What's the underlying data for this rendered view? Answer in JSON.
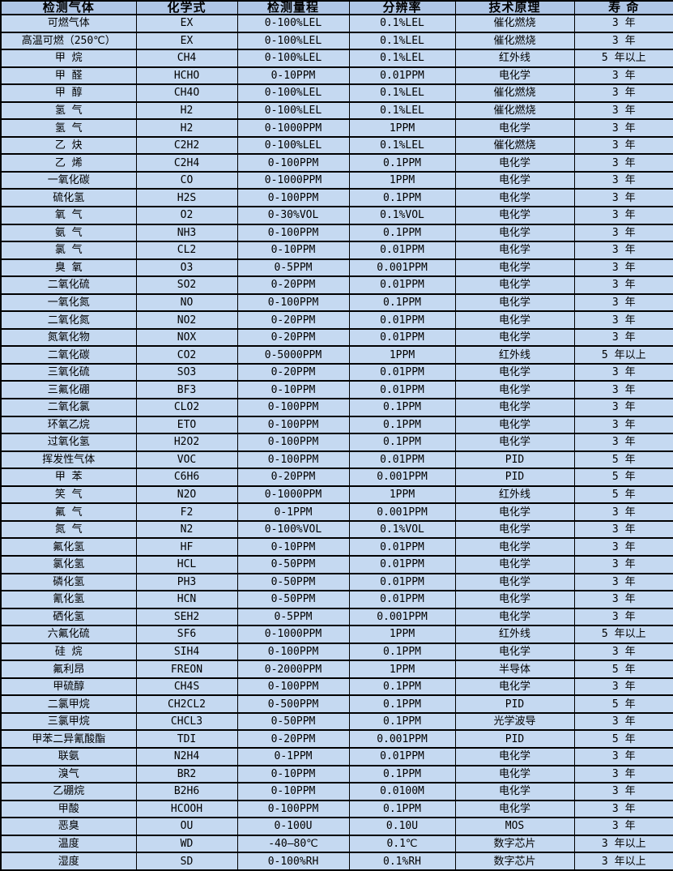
{
  "colors": {
    "header_bg": "#afc6e6",
    "row_bg": "#c5d9f1",
    "border": "#000000",
    "text": "#000000"
  },
  "table": {
    "headers": [
      "检测气体",
      "化学式",
      "检测量程",
      "分辨率",
      "技术原理",
      "寿 命"
    ],
    "rows": [
      [
        "可燃气体",
        "EX",
        "0-100%LEL",
        "0.1%LEL",
        "催化燃烧",
        "3 年"
      ],
      [
        "高温可燃（250℃）",
        "EX",
        "0-100%LEL",
        "0.1%LEL",
        "催化燃烧",
        "3 年"
      ],
      [
        "甲 烷",
        "CH4",
        "0-100%LEL",
        "0.1%LEL",
        "红外线",
        "5 年以上"
      ],
      [
        "甲 醛",
        "HCHO",
        "0-10PPM",
        "0.01PPM",
        "电化学",
        "3 年"
      ],
      [
        "甲 醇",
        "CH4O",
        "0-100%LEL",
        "0.1%LEL",
        "催化燃烧",
        "3 年"
      ],
      [
        "氢 气",
        "H2",
        "0-100%LEL",
        "0.1%LEL",
        "催化燃烧",
        "3 年"
      ],
      [
        "氢 气",
        "H2",
        "0-1000PPM",
        "1PPM",
        "电化学",
        "3 年"
      ],
      [
        "乙 炔",
        "C2H2",
        "0-100%LEL",
        "0.1%LEL",
        "催化燃烧",
        "3 年"
      ],
      [
        "乙 烯",
        "C2H4",
        "0-100PPM",
        "0.1PPM",
        "电化学",
        "3 年"
      ],
      [
        "一氧化碳",
        "CO",
        "0-1000PPM",
        "1PPM",
        "电化学",
        "3 年"
      ],
      [
        "硫化氢",
        "H2S",
        "0-100PPM",
        "0.1PPM",
        "电化学",
        "3 年"
      ],
      [
        "氧 气",
        "O2",
        "0-30%VOL",
        "0.1%VOL",
        "电化学",
        "3 年"
      ],
      [
        "氨 气",
        "NH3",
        "0-100PPM",
        "0.1PPM",
        "电化学",
        "3 年"
      ],
      [
        "氯 气",
        "CL2",
        "0-10PPM",
        "0.01PPM",
        "电化学",
        "3 年"
      ],
      [
        "臭 氧",
        "O3",
        "0-5PPM",
        "0.001PPM",
        "电化学",
        "3 年"
      ],
      [
        "二氧化硫",
        "SO2",
        "0-20PPM",
        "0.01PPM",
        "电化学",
        "3 年"
      ],
      [
        "一氧化氮",
        "NO",
        "0-100PPM",
        "0.1PPM",
        "电化学",
        "3 年"
      ],
      [
        "二氧化氮",
        "NO2",
        "0-20PPM",
        "0.01PPM",
        "电化学",
        "3 年"
      ],
      [
        "氮氧化物",
        "NOX",
        "0-20PPM",
        "0.01PPM",
        "电化学",
        "3 年"
      ],
      [
        "二氧化碳",
        "CO2",
        "0-5000PPM",
        "1PPM",
        "红外线",
        "5 年以上"
      ],
      [
        "三氧化硫",
        "SO3",
        "0-20PPM",
        "0.01PPM",
        "电化学",
        "3 年"
      ],
      [
        "三氟化硼",
        "BF3",
        "0-10PPM",
        "0.01PPM",
        "电化学",
        "3 年"
      ],
      [
        "二氧化氯",
        "CLO2",
        "0-100PPM",
        "0.1PPM",
        "电化学",
        "3 年"
      ],
      [
        "环氧乙烷",
        "ETO",
        "0-100PPM",
        "0.1PPM",
        "电化学",
        "3 年"
      ],
      [
        "过氧化氢",
        "H2O2",
        "0-100PPM",
        "0.1PPM",
        "电化学",
        "3 年"
      ],
      [
        "挥发性气体",
        "VOC",
        "0-100PPM",
        "0.01PPM",
        "PID",
        "5 年"
      ],
      [
        "甲 苯",
        "C6H6",
        "0-20PPM",
        "0.001PPM",
        "PID",
        "5 年"
      ],
      [
        "笑 气",
        "N2O",
        "0-1000PPM",
        "1PPM",
        "红外线",
        "5 年"
      ],
      [
        "氟 气",
        "F2",
        "0-1PPM",
        "0.001PPM",
        "电化学",
        "3 年"
      ],
      [
        "氮 气",
        "N2",
        "0-100%VOL",
        "0.1%VOL",
        "电化学",
        "3 年"
      ],
      [
        "氟化氢",
        "HF",
        "0-10PPM",
        "0.01PPM",
        "电化学",
        "3 年"
      ],
      [
        "氯化氢",
        "HCL",
        "0-50PPM",
        "0.01PPM",
        "电化学",
        "3 年"
      ],
      [
        "磷化氢",
        "PH3",
        "0-50PPM",
        "0.01PPM",
        "电化学",
        "3 年"
      ],
      [
        "氰化氢",
        "HCN",
        "0-50PPM",
        "0.01PPM",
        "电化学",
        "3 年"
      ],
      [
        "硒化氢",
        "SEH2",
        "0-5PPM",
        "0.001PPM",
        "电化学",
        "3 年"
      ],
      [
        "六氟化硫",
        "SF6",
        "0-1000PPM",
        "1PPM",
        "红外线",
        "5 年以上"
      ],
      [
        "硅 烷",
        "SIH4",
        "0-100PPM",
        "0.1PPM",
        "电化学",
        "3 年"
      ],
      [
        "氟利昂",
        "FREON",
        "0-2000PPM",
        "1PPM",
        "半导体",
        "5 年"
      ],
      [
        "甲硫醇",
        "CH4S",
        "0-100PPM",
        "0.1PPM",
        "电化学",
        "3 年"
      ],
      [
        "二氯甲烷",
        "CH2CL2",
        "0-500PPM",
        "0.1PPM",
        "PID",
        "5 年"
      ],
      [
        "三氯甲烷",
        "CHCL3",
        "0-50PPM",
        "0.1PPM",
        "光学波导",
        "3 年"
      ],
      [
        "甲苯二异氰酸酯",
        "TDI",
        "0-20PPM",
        "0.001PPM",
        "PID",
        "5 年"
      ],
      [
        "联氨",
        "N2H4",
        "0-1PPM",
        "0.01PPM",
        "电化学",
        "3 年"
      ],
      [
        "溴气",
        "BR2",
        "0-10PPM",
        "0.1PPM",
        "电化学",
        "3 年"
      ],
      [
        "乙硼烷",
        "B2H6",
        "0-10PPM",
        "0.0100M",
        "电化学",
        "3 年"
      ],
      [
        "甲酸",
        "HCOOH",
        "0-100PPM",
        "0.1PPM",
        "电化学",
        "3 年"
      ],
      [
        "恶臭",
        "OU",
        "0-100U",
        "0.10U",
        "MOS",
        "3 年"
      ],
      [
        "温度",
        "WD",
        "-40—80℃",
        "0.1℃",
        "数字芯片",
        "3 年以上"
      ],
      [
        "湿度",
        "SD",
        "0-100%RH",
        "0.1%RH",
        "数字芯片",
        "3 年以上"
      ]
    ]
  }
}
